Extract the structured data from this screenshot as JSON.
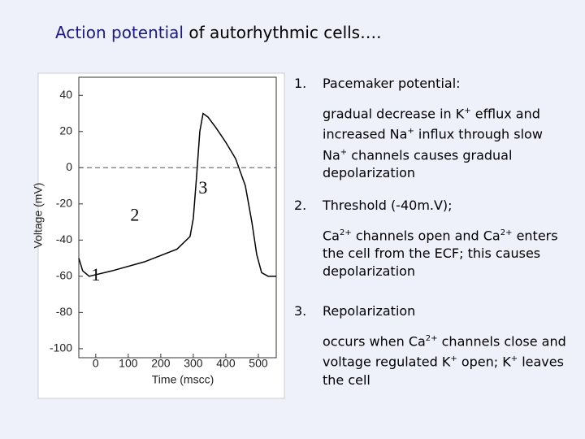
{
  "title": {
    "highlight": "Action potential",
    "rest": "of autorhythmic cells…."
  },
  "chart_data": {
    "type": "line",
    "xlabel": "Time (mscc)",
    "ylabel": "Voltage (mV)",
    "x": [
      -52,
      -40,
      -20,
      50,
      150,
      250,
      290,
      300,
      310,
      320,
      330,
      345,
      370,
      400,
      430,
      460,
      480,
      495,
      510,
      530,
      555
    ],
    "series": [
      {
        "color": "#000000",
        "values": [
          -50,
          -57,
          -60,
          -57,
          -52,
          -45,
          -38,
          -28,
          -5,
          20,
          30,
          28,
          22,
          14,
          5,
          -10,
          -30,
          -48,
          -58,
          -60,
          -60
        ]
      }
    ],
    "xlim": [
      -52,
      555
    ],
    "ylim": [
      -105,
      50
    ],
    "xticks": [
      0,
      100,
      200,
      300,
      400,
      500
    ],
    "yticks": [
      -100,
      -80,
      -60,
      -40,
      -20,
      0,
      20,
      40
    ],
    "hline": 0,
    "grid": false,
    "annotations": [
      {
        "text": "1",
        "x": 0,
        "y": -60
      },
      {
        "text": "2",
        "x": 120,
        "y": -27
      },
      {
        "text": "3",
        "x": 330,
        "y": -12
      }
    ]
  },
  "items": [
    {
      "number": "1.",
      "heading": "Pacemaker potential:",
      "detail": [
        "gradual decrease in K",
        {
          "sup": "+"
        },
        " efflux and increased Na",
        {
          "sup": "+"
        },
        " influx through slow Na",
        {
          "sup": "+"
        },
        " channels causes gradual depolarization"
      ]
    },
    {
      "number": "2.",
      "heading": "Threshold (-40m.V);",
      "detail": [
        "Ca",
        {
          "sup": "2+"
        },
        " channels open and Ca",
        {
          "sup": "2+"
        },
        " enters the cell from the ECF; this causes depolarization"
      ]
    },
    {
      "number": "3.",
      "heading": "Repolarization",
      "detail": [
        "occurs when Ca",
        {
          "sup": "2+"
        },
        " channels close and voltage regulated K",
        {
          "sup": "+"
        },
        " open; K",
        {
          "sup": "+"
        },
        " leaves the cell"
      ]
    }
  ]
}
